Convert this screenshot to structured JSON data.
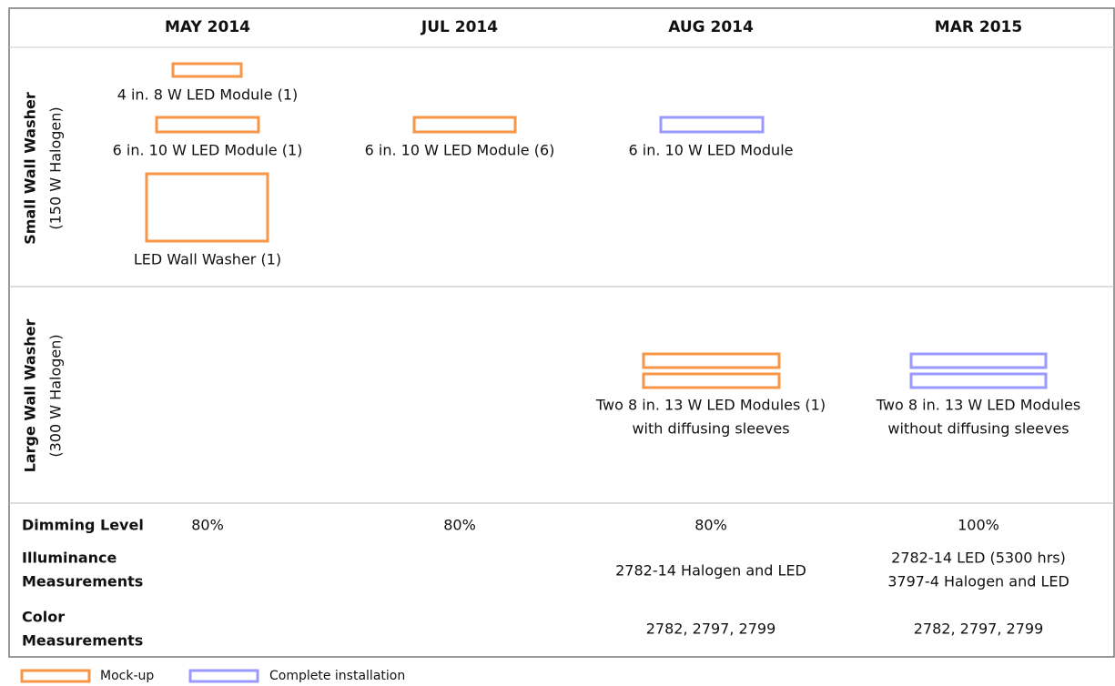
{
  "header": {
    "columns": [
      "MAY 2014",
      "JUL 2014",
      "AUG 2014",
      "MAR 2015"
    ]
  },
  "small": {
    "label": "Small Wall Washer",
    "sublabel": "(150 W Halogen)",
    "items": [
      "4 in. 8 W LED Module (1)",
      "6 in. 10 W LED Module (1)",
      "LED Wall Washer (1)",
      "6 in. 10 W LED Module (6)",
      "6 in. 10 W LED Module"
    ]
  },
  "large": {
    "label": "Large Wall Washer",
    "sublabel": "(300 W Halogen)",
    "items": [
      [
        "Two 8 in. 13 W LED Modules (1)",
        "with diffusing sleeves"
      ],
      [
        "Two 8 in. 13 W LED Modules",
        "without diffusing sleeves"
      ]
    ]
  },
  "measurements": {
    "dimming": {
      "label": "Dimming Level",
      "values": [
        "80%",
        "80%",
        "80%",
        "100%"
      ]
    },
    "illuminance": {
      "label": [
        "Illuminance",
        "Measurements"
      ],
      "aug": "2782-14  Halogen and LED",
      "mar": [
        "2782-14  LED (5300 hrs)",
        "3797-4  Halogen and LED"
      ]
    },
    "color": {
      "label": [
        "Color",
        "Measurements"
      ],
      "aug": "2782,  2797,  2799",
      "mar": "2782,  2797,  2799"
    }
  },
  "legend": [
    "Mock-up",
    "Complete installation"
  ]
}
